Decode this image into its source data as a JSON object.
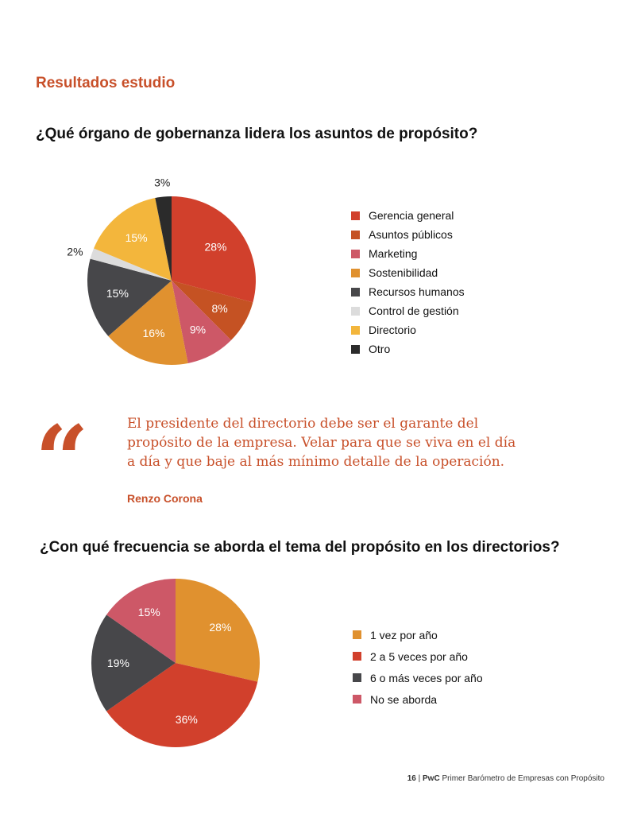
{
  "header": {
    "section_title": "Resultados estudio"
  },
  "colors": {
    "gerencia": "#d1402c",
    "asuntos": "#c55223",
    "marketing": "#cd5867",
    "sostenibilidad": "#e0912f",
    "recursos": "#47474a",
    "control": "#dcdcdc",
    "directorio": "#f3b63c",
    "otro": "#2b2b2b"
  },
  "quote": {
    "mark": "“",
    "line1": "El presidente del directorio debe ser el garante del",
    "line2": "propósito de la empresa.  Velar para que se viva en el día",
    "line3": "a día y que baje al más mínimo detalle de la operación.",
    "author": "Renzo Corona"
  },
  "footer": {
    "page": "16",
    "separator": "|",
    "brand": "PwC",
    "text": "Primer Barómetro de Empresas con Propósito"
  },
  "chart_data": [
    {
      "type": "pie",
      "title": "¿Qué órgano de gobernanza lidera los asuntos de propósito?",
      "legend_position": "right",
      "categories": [
        "Gerencia general",
        "Asuntos públicos",
        "Marketing",
        "Sostenibilidad",
        "Recursos humanos",
        "Control de gestión",
        "Directorio",
        "Otro"
      ],
      "values": [
        28,
        8,
        9,
        16,
        15,
        2,
        15,
        3
      ],
      "labels": [
        "28%",
        "8%",
        "9%",
        "16%",
        "15%",
        "2%",
        "15%",
        "3%"
      ],
      "colors": [
        "#d1402c",
        "#c55223",
        "#cd5867",
        "#e0912f",
        "#47474a",
        "#dcdcdc",
        "#f3b63c",
        "#2b2b2b"
      ]
    },
    {
      "type": "pie",
      "title": "¿Con qué frecuencia se aborda el tema del propósito en los directorios?",
      "legend_position": "right",
      "categories": [
        "1 vez por año",
        "2 a 5 veces por año",
        "6 o más veces por año",
        "No se aborda"
      ],
      "values": [
        28,
        36,
        19,
        15
      ],
      "labels": [
        "28%",
        "36%",
        "19%",
        "15%"
      ],
      "colors": [
        "#e0912f",
        "#d1402c",
        "#47474a",
        "#cd5867"
      ]
    }
  ]
}
